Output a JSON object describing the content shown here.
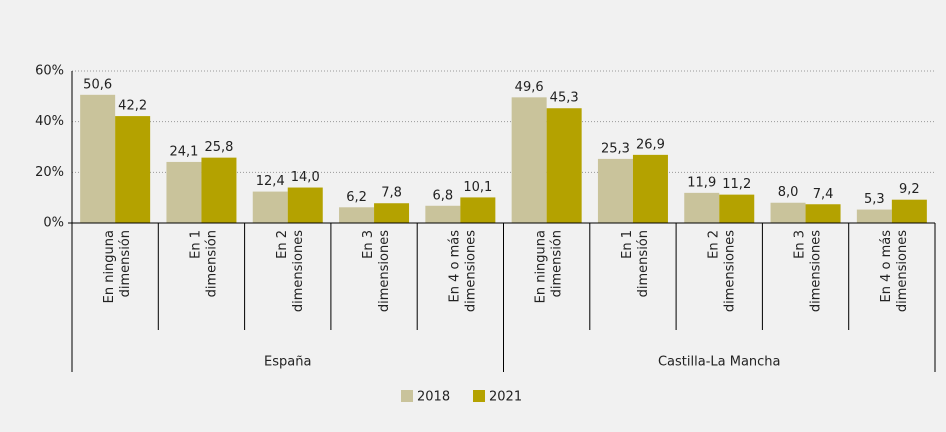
{
  "chart_data": {
    "type": "bar",
    "categories": [
      "En ninguna\ndimensión",
      "En 1\ndimensión",
      "En 2\ndimensiones",
      "En 3\ndimensiones",
      "En 4 o más\ndimensiones",
      "En ninguna\ndimensión",
      "En 1\ndimensión",
      "En 2\ndimensiones",
      "En 3\ndimensiones",
      "En 4 o más\ndimensiones"
    ],
    "groups": [
      "España",
      "Castilla-La Mancha"
    ],
    "series": [
      {
        "name": "2018",
        "color": "#c9c39b",
        "values": [
          50.6,
          24.1,
          12.4,
          6.2,
          6.8,
          49.6,
          25.3,
          11.9,
          8.0,
          5.3
        ],
        "value_labels": [
          "50,6",
          "24,1",
          "12,4",
          "6,2",
          "6,8",
          "49,6",
          "25,3",
          "11,9",
          "8,0",
          "5,3"
        ]
      },
      {
        "name": "2021",
        "color": "#b4a200",
        "values": [
          42.2,
          25.8,
          14.0,
          7.8,
          10.1,
          45.3,
          26.9,
          11.2,
          7.4,
          9.2
        ],
        "value_labels": [
          "42,2",
          "25,8",
          "14,0",
          "7,8",
          "10,1",
          "45,3",
          "26,9",
          "11,2",
          "7,4",
          "9,2"
        ]
      }
    ],
    "ylim": [
      0,
      60
    ],
    "yticks": [
      {
        "value": 0,
        "label": "0%"
      },
      {
        "value": 20,
        "label": "20%"
      },
      {
        "value": 40,
        "label": "40%"
      },
      {
        "value": 60,
        "label": "60%"
      }
    ],
    "grid": true
  }
}
